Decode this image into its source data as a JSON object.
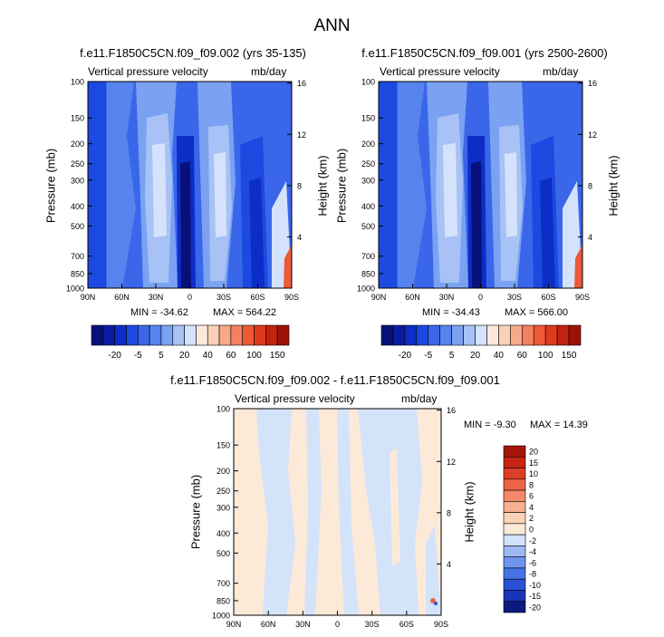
{
  "page": {
    "title": "ANN"
  },
  "common": {
    "variable": "Vertical pressure velocity",
    "units": "mb/day",
    "ylabel_left": "Pressure (mb)",
    "ylabel_right": "Height (km)",
    "pressure_ticks": [
      "100",
      "150",
      "200",
      "250",
      "300",
      "400",
      "500",
      "700",
      "850",
      "1000"
    ],
    "height_ticks": [
      "16",
      "12",
      "8",
      "4"
    ],
    "lat_ticks": [
      "90N",
      "60N",
      "30N",
      "0",
      "30S",
      "60S",
      "90S"
    ],
    "colors_main": [
      "#08117a",
      "#0a1ca0",
      "#0c2ec6",
      "#1c4ae0",
      "#3a66ea",
      "#5683ee",
      "#7ba2f2",
      "#a8c2f6",
      "#d5e2fb",
      "#fce9dc",
      "#fbd0b8",
      "#f7a98a",
      "#f3805f",
      "#ec5a38",
      "#de3a1e",
      "#c4210f",
      "#9c1208"
    ],
    "colors_diff": [
      "#0a1a80",
      "#1a33b8",
      "#2a52d8",
      "#4672e6",
      "#6e95ee",
      "#9db8f4",
      "#d3e3fa",
      "#fde9d8",
      "#fbd2b6",
      "#f7b090",
      "#f3886a",
      "#ec6446",
      "#dd3f26",
      "#c62512",
      "#a5150a"
    ]
  },
  "chart_data": [
    {
      "type": "heatmap",
      "title": "f.e11.F1850C5CN.f09_f09.002 (yrs 35-135)",
      "variable": "Vertical pressure velocity",
      "units": "mb/day",
      "xlabel": "",
      "ylabel": "Pressure (mb)",
      "ylabel_right": "Height (km)",
      "min_label": "MIN = -34.62",
      "max_label": "MAX = 564.22",
      "min": -34.62,
      "max": 564.22,
      "colorbar_labels": [
        "-20",
        "-5",
        "5",
        "20",
        "40",
        "60",
        "100",
        "150"
      ]
    },
    {
      "type": "heatmap",
      "title": "f.e11.F1850C5CN.f09_f09.001 (yrs 2500-2600)",
      "variable": "Vertical pressure velocity",
      "units": "mb/day",
      "xlabel": "",
      "ylabel": "Pressure (mb)",
      "ylabel_right": "Height (km)",
      "min_label": "MIN = -34.43",
      "max_label": "MAX = 566.00",
      "min": -34.43,
      "max": 566.0,
      "colorbar_labels": [
        "-20",
        "-5",
        "5",
        "20",
        "40",
        "60",
        "100",
        "150"
      ]
    },
    {
      "type": "heatmap",
      "title": "f.e11.F1850C5CN.f09_f09.002 - f.e11.F1850C5CN.f09_f09.001",
      "variable": "Vertical pressure velocity",
      "units": "mb/day",
      "xlabel": "",
      "ylabel": "Pressure (mb)",
      "ylabel_right": "Height (km)",
      "min_label": "MIN = -9.30",
      "max_label": "MAX = 14.39",
      "min": -9.3,
      "max": 14.39,
      "colorbar_labels": [
        "20",
        "15",
        "10",
        "8",
        "6",
        "4",
        "2",
        "0",
        "-2",
        "-4",
        "-6",
        "-8",
        "-10",
        "-15",
        "-20"
      ]
    }
  ]
}
